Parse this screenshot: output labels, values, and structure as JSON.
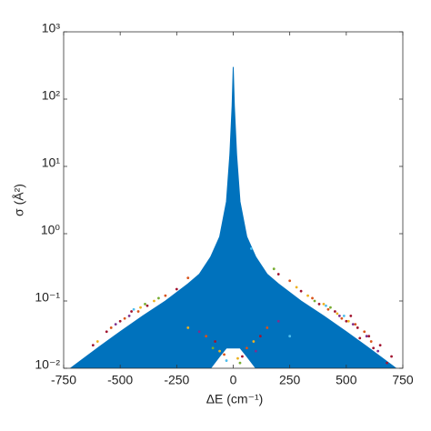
{
  "chart_data": {
    "type": "scatter",
    "xlabel": "ΔE (cm⁻¹)",
    "ylabel": "σ (Å²)",
    "xlim": [
      -750,
      750
    ],
    "xticks": [
      -750,
      -500,
      -250,
      0,
      250,
      500,
      750
    ],
    "ylim": [
      0.01,
      1000
    ],
    "ylog": true,
    "yticks": [
      {
        "value": 0.01,
        "label": "10⁻²"
      },
      {
        "value": 0.1,
        "label": "10⁻¹"
      },
      {
        "value": 1,
        "label": "10⁰"
      },
      {
        "value": 10,
        "label": "10¹"
      },
      {
        "value": 100,
        "label": "10²"
      },
      {
        "value": 1000,
        "label": "10³"
      }
    ],
    "series": [
      {
        "color": "#0072bd",
        "kind": "area",
        "x": [
          -720,
          -650,
          -600,
          -500,
          -400,
          -300,
          -200,
          -150,
          -100,
          -60,
          -30,
          -15,
          -5,
          0,
          5,
          15,
          30,
          60,
          100,
          150,
          200,
          300,
          400,
          500,
          600,
          650,
          720
        ],
        "values": [
          0.01,
          0.015,
          0.02,
          0.035,
          0.06,
          0.1,
          0.18,
          0.25,
          0.45,
          0.9,
          3,
          15,
          80,
          300,
          80,
          15,
          3,
          0.9,
          0.45,
          0.25,
          0.18,
          0.1,
          0.06,
          0.035,
          0.02,
          0.015,
          0.01
        ],
        "lower": [
          0.01,
          0.01,
          0.01,
          0.01,
          0.01,
          0.01,
          0.01,
          0.01,
          0.01,
          0.015,
          0.02,
          0.02,
          0.02,
          0.02,
          0.02,
          0.02,
          0.02,
          0.015,
          0.01,
          0.01,
          0.01,
          0.01,
          0.01,
          0.01,
          0.01,
          0.01,
          0.01
        ]
      },
      {
        "color": "#a2142f",
        "kind": "points",
        "x": [
          450,
          500,
          550,
          600,
          650,
          700,
          620,
          520,
          380,
          -450,
          -500,
          -560,
          -620,
          -380,
          300,
          200,
          -250,
          120,
          -80,
          40,
          680,
          560
        ],
        "values": [
          0.07,
          0.05,
          0.04,
          0.03,
          0.022,
          0.015,
          0.02,
          0.06,
          0.09,
          0.07,
          0.05,
          0.035,
          0.022,
          0.085,
          0.14,
          0.25,
          0.15,
          0.03,
          0.025,
          0.015,
          0.012,
          0.028
        ]
      },
      {
        "color": "#d95319",
        "kind": "points",
        "x": [
          420,
          480,
          540,
          610,
          350,
          250,
          -420,
          -480,
          -540,
          -300,
          -200,
          150,
          -120,
          60,
          -40,
          580
        ],
        "values": [
          0.075,
          0.055,
          0.045,
          0.025,
          0.11,
          0.2,
          0.07,
          0.055,
          0.04,
          0.12,
          0.22,
          0.04,
          0.03,
          0.02,
          0.016,
          0.035
        ]
      },
      {
        "color": "#edb120",
        "kind": "points",
        "x": [
          400,
          460,
          330,
          280,
          -350,
          -410,
          -600,
          90,
          -60,
          20,
          510,
          -200
        ],
        "values": [
          0.09,
          0.065,
          0.12,
          0.16,
          0.1,
          0.08,
          0.025,
          0.025,
          0.018,
          0.014,
          0.05,
          0.04
        ]
      },
      {
        "color": "#7e2f8e",
        "kind": "points",
        "x": [
          470,
          530,
          590,
          -460,
          -520,
          200,
          -150,
          100,
          640
        ],
        "values": [
          0.06,
          0.045,
          0.03,
          0.06,
          0.045,
          0.05,
          0.035,
          0.018,
          0.018
        ]
      },
      {
        "color": "#77ac30",
        "kind": "points",
        "x": [
          430,
          360,
          -390,
          -330,
          180,
          -90,
          30
        ],
        "values": [
          0.08,
          0.1,
          0.09,
          0.11,
          0.3,
          0.02,
          0.012
        ]
      },
      {
        "color": "#4dbeee",
        "kind": "points",
        "x": [
          490,
          410,
          -440,
          80,
          -30,
          250
        ],
        "values": [
          0.06,
          0.085,
          0.075,
          0.6,
          0.013,
          0.03
        ]
      }
    ]
  }
}
